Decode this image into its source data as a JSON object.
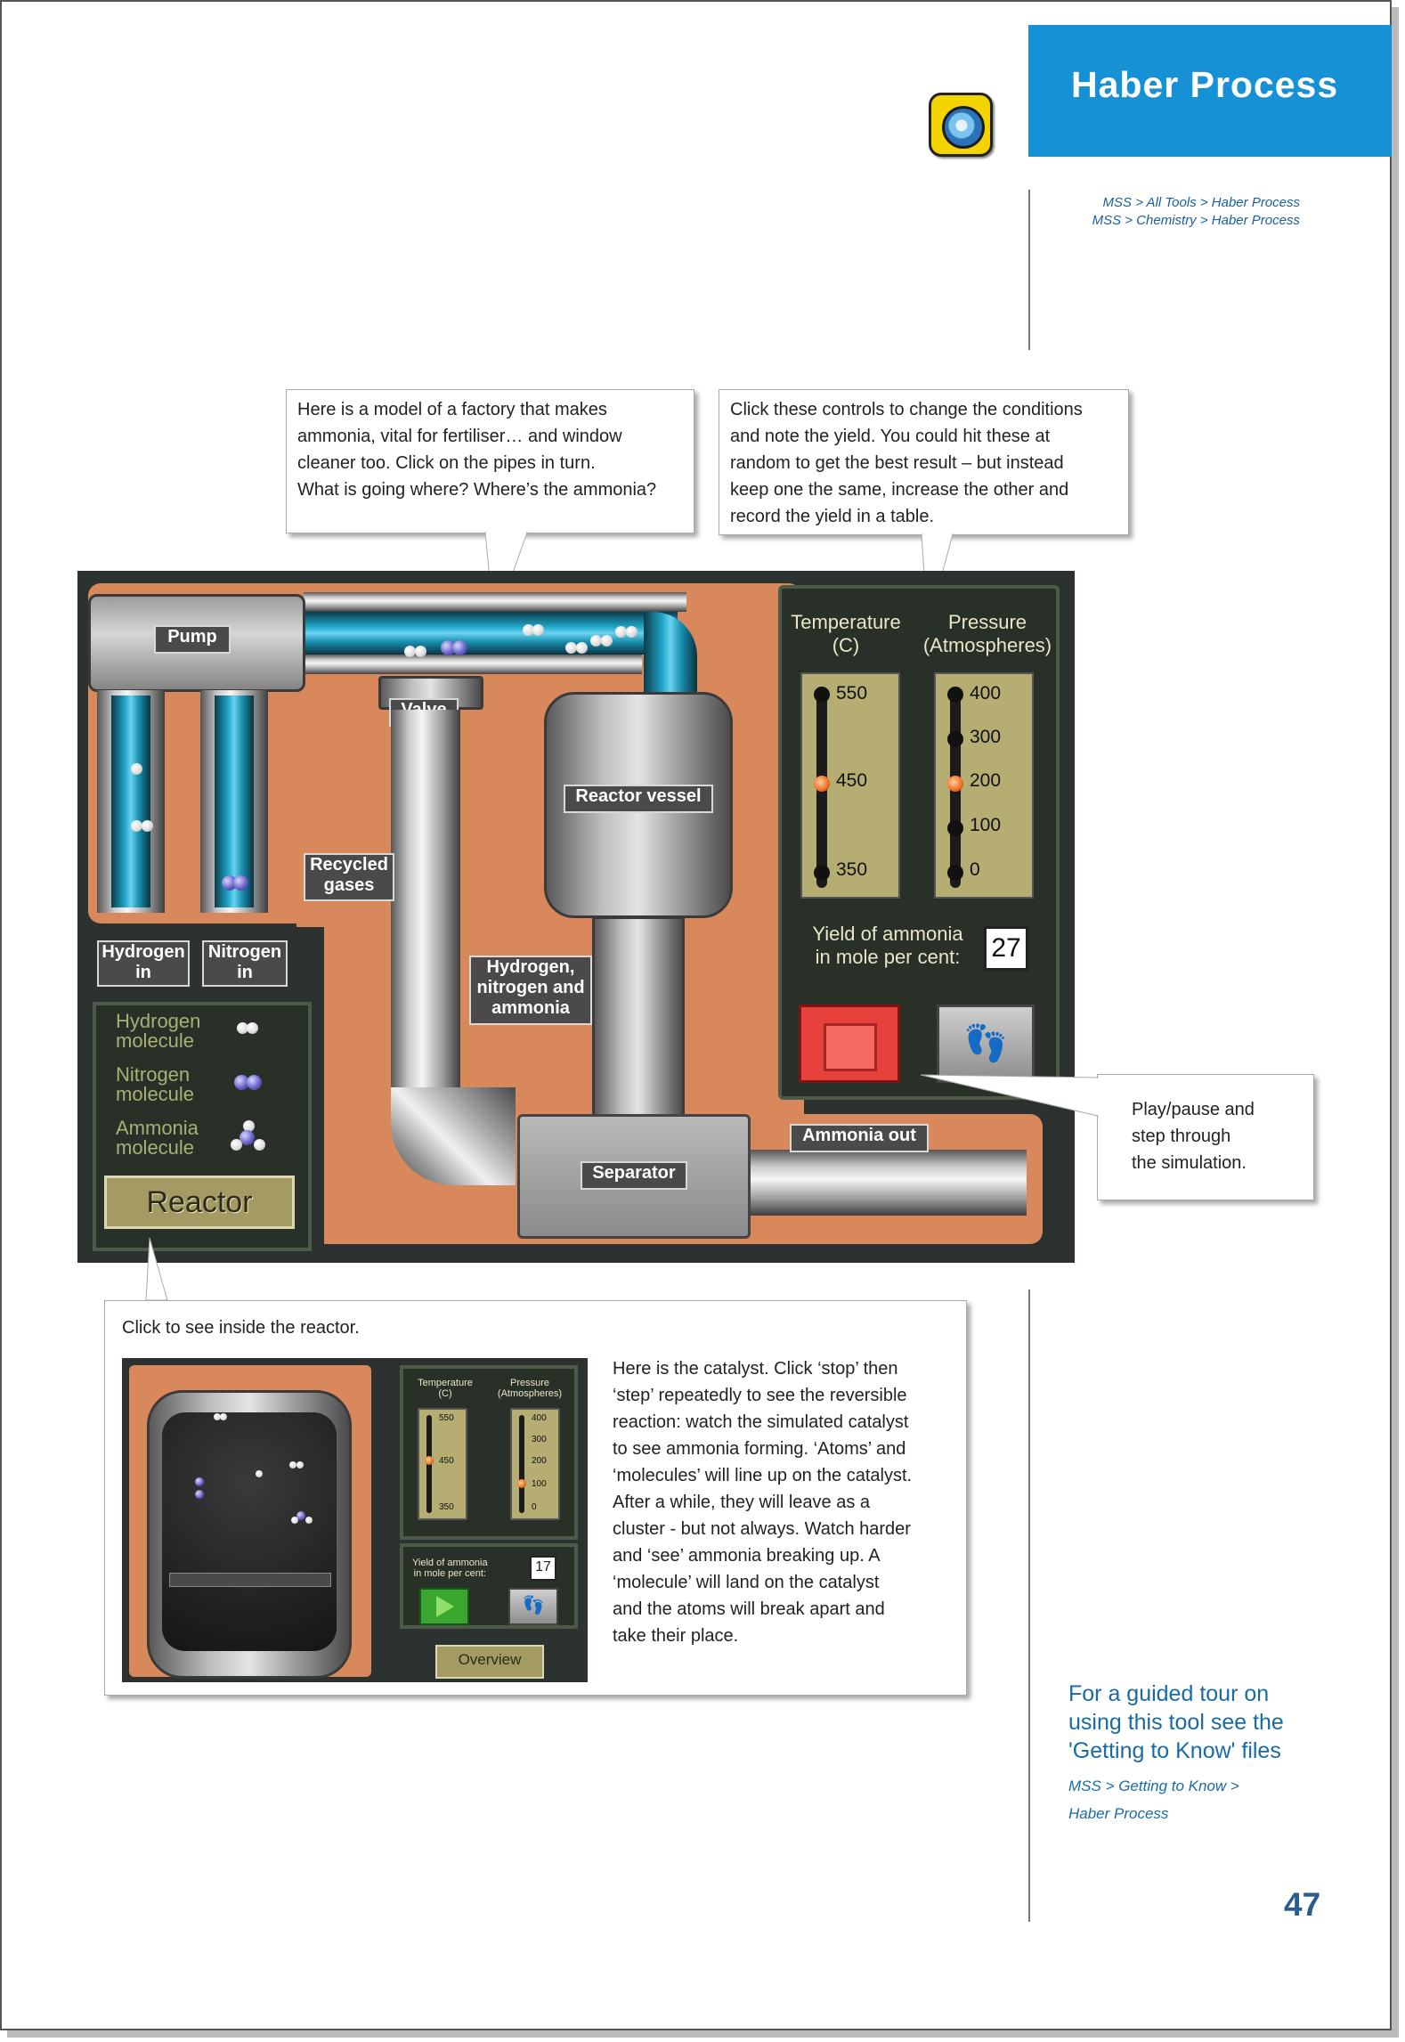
{
  "header": {
    "title": "Haber Process"
  },
  "breadcrumbs": [
    "MSS > All Tools > Haber Process",
    "MSS > Chemistry > Haber Process"
  ],
  "callouts": {
    "factory": [
      "Here is a model of a factory that makes",
      "ammonia, vital for fertiliser… and window",
      "cleaner too. Click on the pipes in turn.",
      "What is going where? Where’s the ammonia?"
    ],
    "controls": [
      "Click these controls to change the conditions",
      "and note the yield. You could hit these at",
      "random to get the best result – but instead",
      "keep one the same, increase the other and",
      "record the yield in a table."
    ],
    "play": [
      "Play/pause and",
      "step through",
      "the simulation."
    ],
    "reactor_caption": "Click to see inside the reactor.",
    "catalyst": [
      "Here is the catalyst. Click ‘stop’ then",
      "‘step’ repeatedly to see the reversible",
      "reaction: watch the simulated catalyst",
      "to see ammonia forming. ‘Atoms’ and",
      "‘molecules’ will line up on the catalyst.",
      "After a while, they will leave as a",
      "cluster - but not always. Watch harder",
      "and ‘see’ ammonia breaking up. A",
      "‘molecule’ will land on the catalyst",
      "and the atoms will break apart and",
      "take their place."
    ]
  },
  "sim": {
    "pump": "Pump",
    "valve": "Valve",
    "reactor_vessel": "Reactor vessel",
    "recycled": [
      "Recycled",
      "gases"
    ],
    "mix": [
      "Hydrogen,",
      "nitrogen and",
      "ammonia"
    ],
    "separator": "Separator",
    "ammonia_out": "Ammonia out",
    "hydrogen_in": [
      "Hydrogen",
      "in"
    ],
    "nitrogen_in": [
      "Nitrogen",
      "in"
    ],
    "legend": [
      {
        "label": [
          "Hydrogen",
          "molecule"
        ],
        "icon": "hydrogen-molecule-icon"
      },
      {
        "label": [
          "Nitrogen",
          "molecule"
        ],
        "icon": "nitrogen-molecule-icon"
      },
      {
        "label": [
          "Ammonia",
          "molecule"
        ],
        "icon": "ammonia-molecule-icon"
      }
    ],
    "reactor_button": "Reactor",
    "temperature": {
      "label": [
        "Temperature",
        "(C)"
      ],
      "ticks": [
        "550",
        "450",
        "350"
      ],
      "value": "450"
    },
    "pressure": {
      "label": [
        "Pressure",
        "(Atmospheres)"
      ],
      "ticks": [
        "400",
        "300",
        "200",
        "100",
        "0"
      ],
      "value": "200"
    },
    "yield_label": [
      "Yield of ammonia",
      "in mole per cent:"
    ],
    "yield_value": "27",
    "step_icon": "footprints-icon",
    "stop_icon": "stop-icon"
  },
  "inset": {
    "temperature": {
      "label": [
        "Temperature",
        "(C)"
      ],
      "ticks": [
        "550",
        "450",
        "350"
      ]
    },
    "pressure": {
      "label": [
        "Pressure",
        "(Atmospheres)"
      ],
      "ticks": [
        "400",
        "300",
        "200",
        "100",
        "0"
      ]
    },
    "yield_label": [
      "Yield of ammonia",
      "in mole per cent:"
    ],
    "yield_value": "17",
    "overview": "Overview",
    "play_icon": "play-icon"
  },
  "sidebar": {
    "note": [
      "For a guided tour on",
      "using this tool see the",
      "'Getting to Know' files"
    ],
    "link": [
      "MSS > Getting to Know >",
      "Haber Process"
    ]
  },
  "page_number": "47",
  "colors": {
    "title_band": "#1791d5",
    "background": "#d9885b",
    "stop": "#e6413b"
  }
}
